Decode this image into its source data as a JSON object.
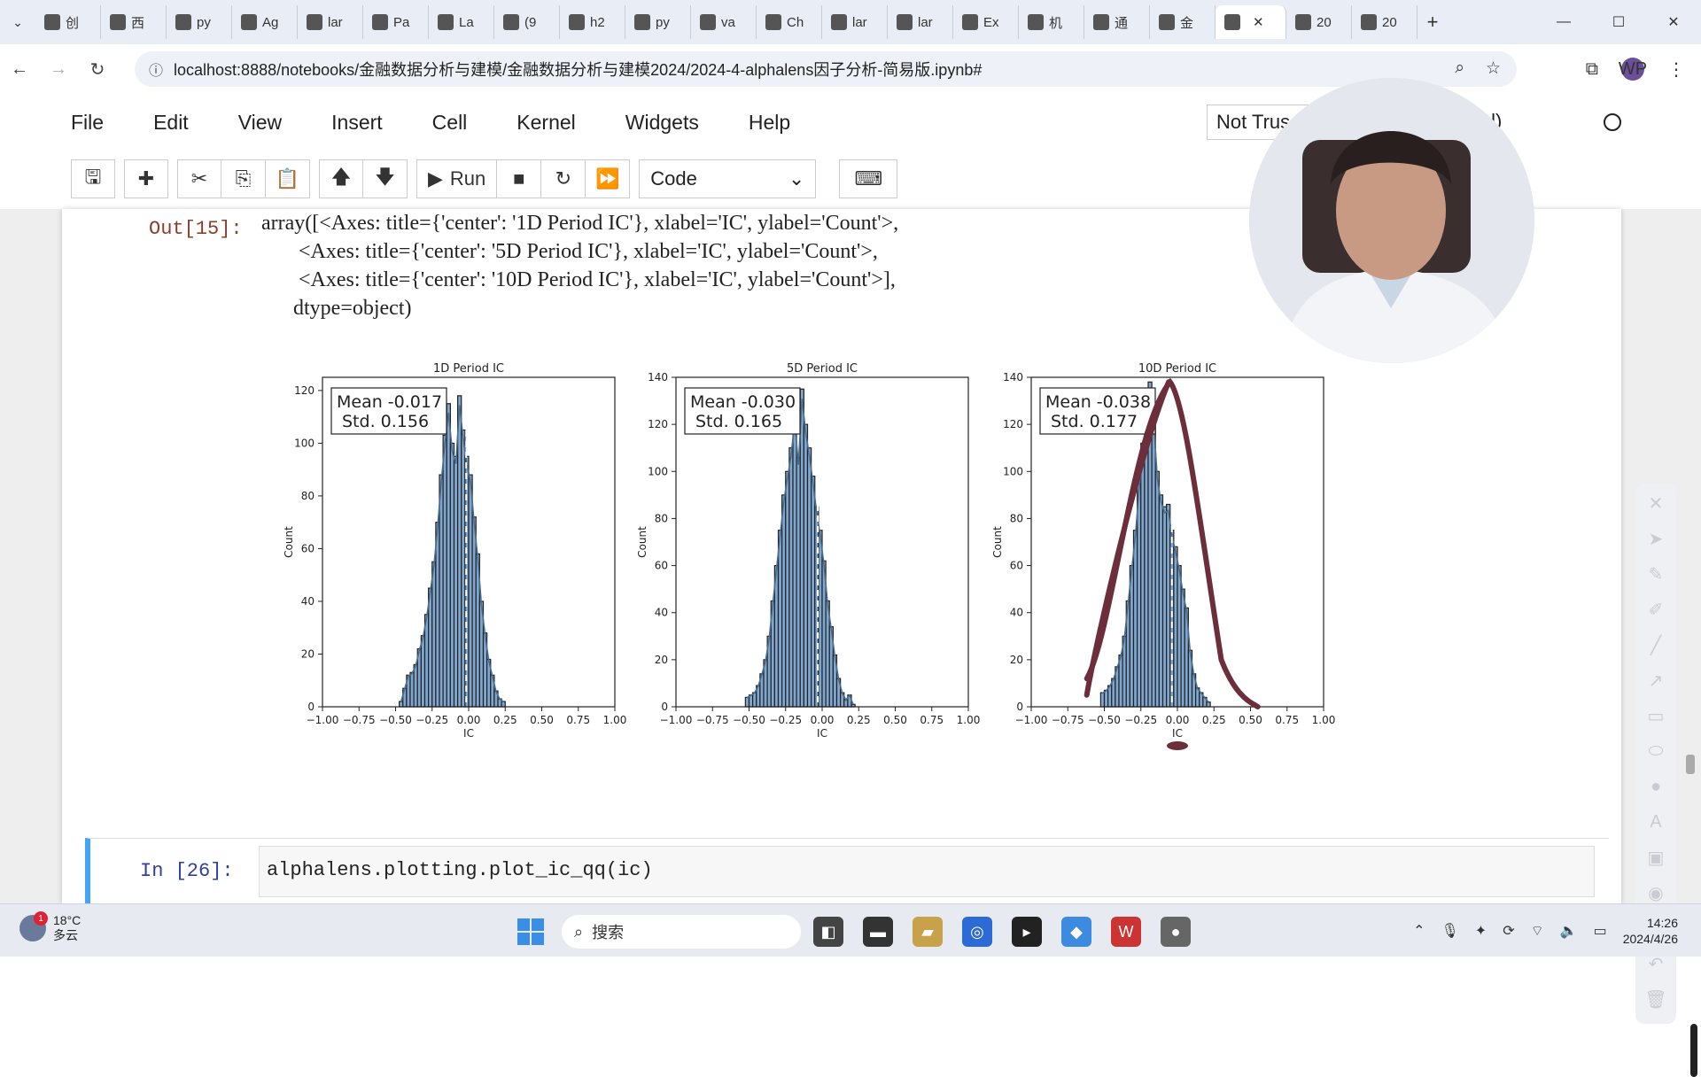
{
  "tabs": [
    {
      "icon": "browser-tab-icon",
      "label": "创"
    },
    {
      "icon": "media-icon",
      "label": "西"
    },
    {
      "icon": "github-icon",
      "label": "py"
    },
    {
      "icon": "mail-icon",
      "label": "Ag"
    },
    {
      "icon": "github-icon",
      "label": "lar"
    },
    {
      "icon": "mail-icon",
      "label": "Pa"
    },
    {
      "icon": "mail-icon",
      "label": "La"
    },
    {
      "icon": "zhihu-icon",
      "label": "(9"
    },
    {
      "icon": "github-icon",
      "label": "h2"
    },
    {
      "icon": "c-icon",
      "label": "py"
    },
    {
      "icon": "github-icon",
      "label": "va"
    },
    {
      "icon": "mail-icon",
      "label": "Ch"
    },
    {
      "icon": "book-icon",
      "label": "lar"
    },
    {
      "icon": "book-icon",
      "label": "lar"
    },
    {
      "icon": "person-icon",
      "label": "Ex"
    },
    {
      "icon": "o-icon",
      "label": "机"
    },
    {
      "icon": "globe-icon",
      "label": "通"
    },
    {
      "icon": "loading-icon",
      "label": "金"
    },
    {
      "icon": "notebook-icon",
      "label": ""
    },
    {
      "icon": "notebook-icon",
      "label": "20"
    },
    {
      "icon": "notebook-icon",
      "label": "20"
    }
  ],
  "address": {
    "url": "localhost:8888/notebooks/金融数据分析与建模/金融数据分析与建模2024/2024-4-alphalens因子分析-简易版.ipynb#"
  },
  "menubar": [
    "File",
    "Edit",
    "View",
    "Insert",
    "Cell",
    "Kernel",
    "Widgets",
    "Help"
  ],
  "status": {
    "trusted": "Not Trus",
    "kernel": "ipykernel)"
  },
  "toolbar": {
    "run_label": "Run",
    "cell_type": "Code"
  },
  "output": {
    "prompt": "Out[15]:",
    "text": "array([<Axes: title={'center': '1D Period IC'}, xlabel='IC', ylabel='Count'>,\n       <Axes: title={'center': '5D Period IC'}, xlabel='IC', ylabel='Count'>,\n       <Axes: title={'center': '10D Period IC'}, xlabel='IC', ylabel='Count'>],\n      dtype=object)"
  },
  "chart_data": [
    {
      "type": "bar",
      "title": "1D Period IC",
      "xlabel": "IC",
      "ylabel": "Count",
      "annotation": [
        "Mean -0.017",
        "Std. 0.156"
      ],
      "mean": -0.017,
      "xlim": [
        -1.0,
        1.0
      ],
      "ylim": [
        0,
        125
      ],
      "xticks": [
        "−1.00",
        "−0.75",
        "−0.50",
        "−0.25",
        "0.00",
        "0.25",
        "0.50",
        "0.75",
        "1.00"
      ],
      "yticks": [
        "0",
        "20",
        "40",
        "60",
        "80",
        "100",
        "120"
      ],
      "bin_start": -0.475,
      "bin_width": 0.025,
      "values": [
        2,
        7,
        12,
        13,
        16,
        22,
        27,
        35,
        45,
        55,
        70,
        88,
        103,
        115,
        100,
        95,
        118,
        105,
        95,
        88,
        72,
        58,
        40,
        28,
        18,
        12,
        6,
        3,
        2
      ]
    },
    {
      "type": "bar",
      "title": "5D Period IC",
      "xlabel": "IC",
      "ylabel": "Count",
      "annotation": [
        "Mean -0.030",
        "Std. 0.165"
      ],
      "mean": -0.03,
      "xlim": [
        -1.0,
        1.0
      ],
      "ylim": [
        0,
        140
      ],
      "xticks": [
        "−1.00",
        "−0.75",
        "−0.50",
        "−0.25",
        "0.00",
        "0.25",
        "0.50",
        "0.75",
        "1.00"
      ],
      "yticks": [
        "0",
        "20",
        "40",
        "60",
        "80",
        "100",
        "120",
        "140"
      ],
      "bin_start": -0.525,
      "bin_width": 0.025,
      "values": [
        4,
        5,
        6,
        9,
        14,
        20,
        30,
        45,
        60,
        75,
        90,
        100,
        110,
        125,
        106,
        135,
        120,
        110,
        98,
        85,
        75,
        62,
        45,
        34,
        22,
        12,
        6,
        3,
        5,
        1
      ]
    },
    {
      "type": "bar",
      "title": "10D Period IC",
      "xlabel": "IC",
      "ylabel": "Count",
      "annotation": [
        "Mean -0.038",
        "Std. 0.177"
      ],
      "mean": -0.038,
      "xlim": [
        -1.0,
        1.0
      ],
      "ylim": [
        0,
        140
      ],
      "xticks": [
        "−1.00",
        "−0.75",
        "−0.50",
        "−0.25",
        "0.00",
        "0.25",
        "0.50",
        "0.75",
        "1.00"
      ],
      "yticks": [
        "0",
        "20",
        "40",
        "60",
        "80",
        "100",
        "120",
        "140"
      ],
      "bin_start": -0.525,
      "bin_width": 0.025,
      "values": [
        6,
        7,
        9,
        12,
        17,
        22,
        30,
        45,
        60,
        75,
        95,
        112,
        122,
        138,
        125,
        100,
        90,
        85,
        86,
        75,
        68,
        60,
        50,
        42,
        24,
        14,
        8,
        6,
        4,
        2
      ]
    }
  ],
  "input_cell": {
    "prompt": "In  [26]:",
    "code": "alphalens.plotting.plot_ic_qq(ic)"
  },
  "taskbar": {
    "badge": "1",
    "temperature": "18°C",
    "weather": "多云",
    "search_placeholder": "搜索",
    "time": "14:26",
    "date": "2024/4/26"
  },
  "colors": {
    "bar": "#7ea6cf",
    "kde": "#4a6d8f",
    "annotation_ink": "#6b2e3a",
    "cell_accent": "#42a5f5",
    "out_prompt": "#8b3f2a",
    "in_prompt": "#303f9f"
  }
}
